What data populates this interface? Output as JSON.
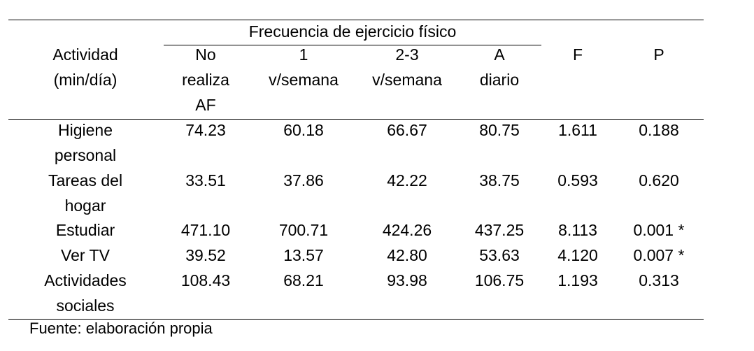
{
  "table": {
    "group_header": "Frecuencia de ejercicio físico",
    "columns": [
      {
        "lines": [
          "Actividad",
          "(min/día)"
        ]
      },
      {
        "lines": [
          "No",
          "realiza",
          "AF"
        ]
      },
      {
        "lines": [
          "1",
          "v/semana"
        ]
      },
      {
        "lines": [
          "2-3",
          "v/semana"
        ]
      },
      {
        "lines": [
          "A",
          "diario"
        ]
      },
      {
        "lines": [
          "F"
        ]
      },
      {
        "lines": [
          "P"
        ]
      }
    ],
    "rows": [
      {
        "activity": [
          "Higiene",
          "personal"
        ],
        "no_realiza": "74.23",
        "una_semana": "60.18",
        "dos_tres_semana": "66.67",
        "diario": "80.75",
        "f": "1.611",
        "p": "0.188"
      },
      {
        "activity": [
          "Tareas del",
          "hogar"
        ],
        "no_realiza": "33.51",
        "una_semana": "37.86",
        "dos_tres_semana": "42.22",
        "diario": "38.75",
        "f": "0.593",
        "p": "0.620"
      },
      {
        "activity": [
          "Estudiar"
        ],
        "no_realiza": "471.10",
        "una_semana": "700.71",
        "dos_tres_semana": "424.26",
        "diario": "437.25",
        "f": "8.113",
        "p": "0.001 *"
      },
      {
        "activity": [
          "Ver TV"
        ],
        "no_realiza": "39.52",
        "una_semana": "13.57",
        "dos_tres_semana": "42.80",
        "diario": "53.63",
        "f": "4.120",
        "p": "0.007 *"
      },
      {
        "activity": [
          "Actividades",
          "sociales"
        ],
        "no_realiza": "108.43",
        "una_semana": "68.21",
        "dos_tres_semana": "93.98",
        "diario": "106.75",
        "f": "1.193",
        "p": "0.313"
      }
    ]
  },
  "source": "Fuente: elaboración propia"
}
